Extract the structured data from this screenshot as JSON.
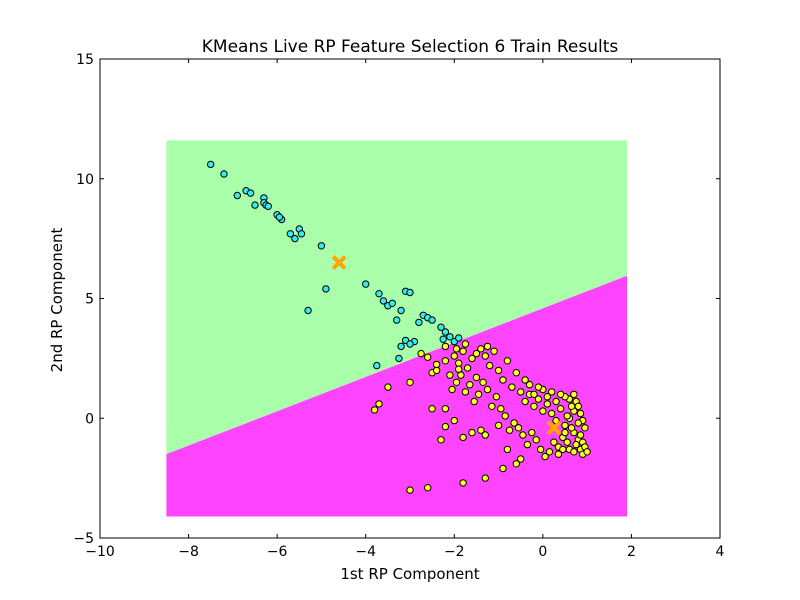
{
  "chart_data": {
    "type": "scatter",
    "title": "KMeans Live RP Feature Selection 6 Train Results",
    "xlabel": "1st RP Component",
    "ylabel": "2nd RP Component",
    "xlim": [
      -10,
      4
    ],
    "ylim": [
      -5,
      15
    ],
    "x_ticks": [
      -10,
      -8,
      -6,
      -4,
      -2,
      0,
      2,
      4
    ],
    "y_ticks": [
      -5,
      0,
      5,
      10,
      15
    ],
    "x_tick_labels": [
      "−10",
      "−8",
      "−6",
      "−4",
      "−2",
      "0",
      "2",
      "4"
    ],
    "y_tick_labels": [
      "−5",
      "0",
      "5",
      "10",
      "15"
    ],
    "grid": false,
    "legend": "none",
    "decision_regions": {
      "x_range": [
        -8.5,
        1.9
      ],
      "y_range": [
        -4.1,
        11.6
      ],
      "boundary_line": [
        [
          -8.5,
          -1.5
        ],
        [
          1.9,
          5.95
        ]
      ],
      "upper_color": "#aaffaa",
      "lower_color": "#ff44ff"
    },
    "series": [
      {
        "cluster": 0,
        "color": "#33eeee",
        "points": [
          [
            -7.5,
            10.6
          ],
          [
            -7.2,
            10.2
          ],
          [
            -6.9,
            9.3
          ],
          [
            -6.7,
            9.5
          ],
          [
            -6.6,
            9.4
          ],
          [
            -6.5,
            8.9
          ],
          [
            -6.3,
            9.2
          ],
          [
            -6.3,
            9.0
          ],
          [
            -6.25,
            8.9
          ],
          [
            -6.2,
            8.85
          ],
          [
            -6.0,
            8.5
          ],
          [
            -5.9,
            8.3
          ],
          [
            -5.95,
            8.4
          ],
          [
            -5.7,
            7.7
          ],
          [
            -5.6,
            7.5
          ],
          [
            -5.5,
            7.9
          ],
          [
            -5.45,
            7.7
          ],
          [
            -5.3,
            4.5
          ],
          [
            -5.0,
            7.2
          ],
          [
            -4.9,
            5.4
          ],
          [
            -4.0,
            5.6
          ],
          [
            -3.7,
            5.2
          ],
          [
            -3.6,
            4.9
          ],
          [
            -3.5,
            4.7
          ],
          [
            -3.4,
            4.8
          ],
          [
            -3.3,
            4.1
          ],
          [
            -3.2,
            4.5
          ],
          [
            -3.1,
            5.3
          ],
          [
            -3.0,
            5.25
          ],
          [
            -2.9,
            3.2
          ],
          [
            -2.8,
            4.0
          ],
          [
            -2.7,
            4.3
          ],
          [
            -2.6,
            4.2
          ],
          [
            -2.5,
            4.1
          ],
          [
            -2.3,
            3.8
          ],
          [
            -2.2,
            3.6
          ],
          [
            -2.1,
            3.4
          ],
          [
            -2.25,
            3.3
          ],
          [
            -3.1,
            3.25
          ],
          [
            -3.2,
            3.0
          ],
          [
            -3.25,
            2.5
          ],
          [
            -3.0,
            3.1
          ],
          [
            -3.75,
            2.2
          ],
          [
            -2.0,
            3.2
          ],
          [
            -1.9,
            3.35
          ]
        ]
      },
      {
        "cluster": 1,
        "color": "#ffff22",
        "points": [
          [
            -3.0,
            -3.0
          ],
          [
            -2.6,
            -2.9
          ],
          [
            -1.8,
            -2.7
          ],
          [
            -1.3,
            -2.5
          ],
          [
            -0.9,
            -2.1
          ],
          [
            -0.6,
            -1.9
          ],
          [
            -0.5,
            -1.7
          ],
          [
            -0.8,
            -1.3
          ],
          [
            -3.8,
            0.35
          ],
          [
            -3.7,
            0.6
          ],
          [
            -2.5,
            0.4
          ],
          [
            -2.2,
            0.4
          ],
          [
            -2.2,
            -0.35
          ],
          [
            -2.0,
            -0.1
          ],
          [
            -2.3,
            -0.9
          ],
          [
            -1.8,
            -0.8
          ],
          [
            -1.6,
            -0.6
          ],
          [
            -1.4,
            -0.5
          ],
          [
            -1.3,
            -0.7
          ],
          [
            -1.0,
            -0.3
          ],
          [
            -3.5,
            1.3
          ],
          [
            -3.0,
            1.5
          ],
          [
            -2.5,
            1.9
          ],
          [
            -2.4,
            2.0
          ],
          [
            -2.2,
            2.4
          ],
          [
            -2.0,
            2.6
          ],
          [
            -1.9,
            2.3
          ],
          [
            -1.8,
            2.8
          ],
          [
            -1.7,
            2.1
          ],
          [
            -1.6,
            2.5
          ],
          [
            -1.5,
            1.7
          ],
          [
            -1.4,
            2.9
          ],
          [
            -1.3,
            2.6
          ],
          [
            -1.2,
            2.2
          ],
          [
            -1.1,
            2.8
          ],
          [
            -1.0,
            2.0
          ],
          [
            -0.9,
            1.6
          ],
          [
            -0.8,
            2.4
          ],
          [
            -0.7,
            1.3
          ],
          [
            -0.6,
            1.9
          ],
          [
            -0.5,
            1.1
          ],
          [
            -0.4,
            0.7
          ],
          [
            -0.3,
            1.0
          ],
          [
            -0.2,
            0.5
          ],
          [
            -0.1,
            0.8
          ],
          [
            0.0,
            0.3
          ],
          [
            0.1,
            0.6
          ],
          [
            0.2,
            0.2
          ],
          [
            0.3,
            -0.1
          ],
          [
            0.4,
            0.4
          ],
          [
            0.5,
            -0.3
          ],
          [
            0.6,
            0.0
          ],
          [
            0.7,
            -0.6
          ],
          [
            0.8,
            -0.9
          ],
          [
            0.85,
            -1.3
          ],
          [
            0.9,
            -1.5
          ],
          [
            0.75,
            -1.1
          ],
          [
            0.65,
            -0.4
          ],
          [
            0.55,
            0.1
          ],
          [
            0.45,
            -0.8
          ],
          [
            0.35,
            -1.2
          ],
          [
            0.25,
            -1.0
          ],
          [
            0.15,
            -1.4
          ],
          [
            0.05,
            -1.6
          ],
          [
            -0.05,
            -1.3
          ],
          [
            -0.15,
            -0.9
          ],
          [
            -0.25,
            -0.6
          ],
          [
            -0.35,
            -1.1
          ],
          [
            -0.45,
            -0.7
          ],
          [
            -0.55,
            -0.4
          ],
          [
            -0.65,
            -0.2
          ],
          [
            -0.75,
            -0.5
          ],
          [
            -0.85,
            0.1
          ],
          [
            -0.95,
            0.4
          ],
          [
            -1.05,
            0.9
          ],
          [
            -1.15,
            0.5
          ],
          [
            -1.25,
            1.2
          ],
          [
            -1.35,
            1.5
          ],
          [
            -1.45,
            1.0
          ],
          [
            -1.55,
            0.7
          ],
          [
            -1.65,
            1.4
          ],
          [
            -1.75,
            1.1
          ],
          [
            -1.85,
            1.8
          ],
          [
            -1.95,
            1.5
          ],
          [
            -2.05,
            1.2
          ],
          [
            0.7,
            1.0
          ],
          [
            0.6,
            0.8
          ],
          [
            0.75,
            0.7
          ],
          [
            0.8,
            0.5
          ],
          [
            0.85,
            0.2
          ],
          [
            0.9,
            -0.1
          ],
          [
            0.95,
            -0.4
          ],
          [
            0.8,
            -0.2
          ],
          [
            0.7,
            0.3
          ],
          [
            0.65,
            0.5
          ],
          [
            0.5,
            0.9
          ],
          [
            0.4,
            1.0
          ],
          [
            0.3,
            0.7
          ],
          [
            0.2,
            1.1
          ],
          [
            0.1,
            0.9
          ],
          [
            0.0,
            1.2
          ],
          [
            -0.1,
            1.3
          ],
          [
            -0.2,
            1.0
          ],
          [
            -0.3,
            1.4
          ],
          [
            -0.4,
            1.6
          ],
          [
            0.55,
            -1.0
          ],
          [
            0.45,
            -1.3
          ],
          [
            0.35,
            -1.5
          ],
          [
            0.6,
            -1.3
          ],
          [
            0.7,
            -1.4
          ],
          [
            0.85,
            -0.7
          ],
          [
            0.9,
            -1.0
          ],
          [
            0.95,
            -1.2
          ],
          [
            1.0,
            -1.4
          ],
          [
            0.5,
            -0.6
          ],
          [
            -2.2,
            3.0
          ],
          [
            -1.95,
            2.9
          ],
          [
            -1.75,
            3.1
          ],
          [
            -1.5,
            2.7
          ],
          [
            -1.25,
            3.0
          ],
          [
            -2.75,
            2.7
          ],
          [
            -2.6,
            2.55
          ],
          [
            -2.4,
            2.25
          ],
          [
            -2.1,
            1.8
          ],
          [
            -1.9,
            2.05
          ]
        ]
      }
    ],
    "centroids": {
      "color": "#ffa500",
      "marker": "x",
      "points": [
        [
          -4.6,
          6.5
        ],
        [
          0.25,
          -0.4
        ]
      ]
    }
  }
}
